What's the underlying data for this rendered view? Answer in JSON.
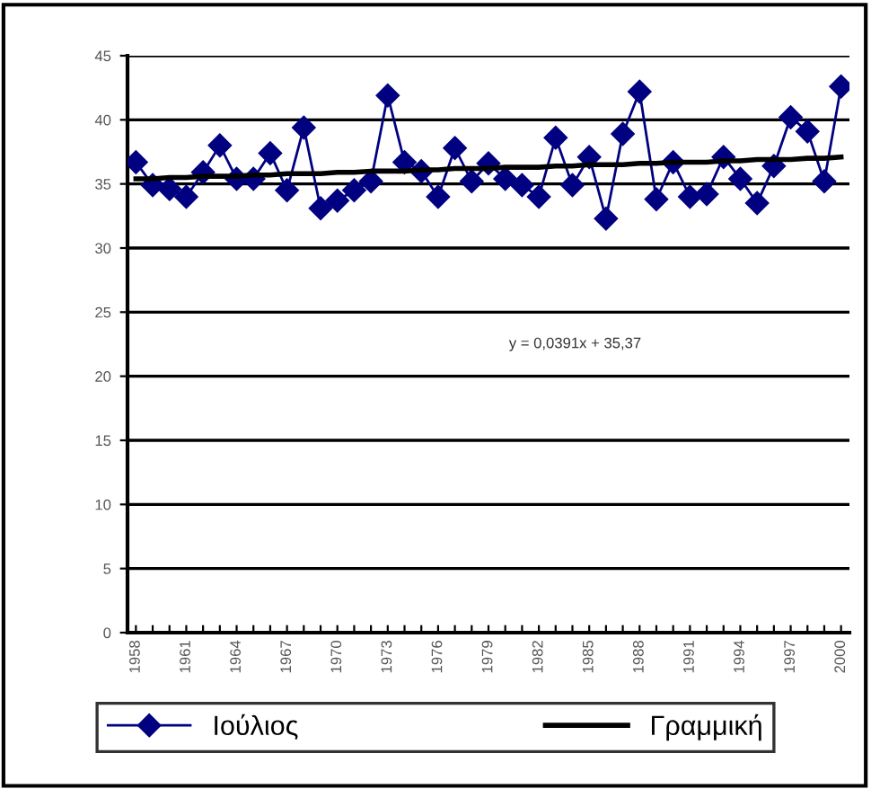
{
  "chart_data": {
    "type": "line",
    "categories": [
      "1958",
      null,
      null,
      "1961",
      null,
      null,
      "1964",
      null,
      null,
      "1967",
      null,
      null,
      "1970",
      null,
      null,
      "1973",
      null,
      null,
      "1976",
      null,
      null,
      "1979",
      null,
      null,
      "1982",
      null,
      null,
      "1985",
      null,
      null,
      "1988",
      null,
      null,
      "1991",
      null,
      null,
      "1994",
      null,
      null,
      "1997",
      null,
      null,
      "2000"
    ],
    "series": [
      {
        "name": "Ιούλιος",
        "color": "#000080",
        "marker": "diamond",
        "values": [
          36.7,
          34.9,
          34.6,
          34.0,
          35.9,
          38.0,
          35.4,
          35.4,
          37.4,
          34.5,
          39.4,
          33.1,
          33.7,
          34.5,
          35.2,
          41.9,
          36.7,
          36.0,
          34.0,
          37.8,
          35.2,
          36.6,
          35.4,
          34.9,
          34.0,
          38.6,
          34.9,
          37.1,
          32.3,
          38.9,
          42.2,
          33.8,
          36.7,
          34.0,
          34.2,
          37.1,
          35.4,
          33.5,
          36.4,
          40.2,
          39.1,
          35.2,
          42.6
        ]
      },
      {
        "name": "Γραμμική",
        "color": "#000000",
        "marker": "none",
        "values": [
          35.4,
          35.4,
          35.5,
          35.5,
          35.6,
          35.6,
          35.6,
          35.7,
          35.7,
          35.8,
          35.8,
          35.8,
          35.9,
          35.9,
          36.0,
          36.0,
          36.0,
          36.1,
          36.1,
          36.2,
          36.2,
          36.2,
          36.3,
          36.3,
          36.3,
          36.4,
          36.4,
          36.5,
          36.5,
          36.5,
          36.6,
          36.6,
          36.7,
          36.7,
          36.7,
          36.8,
          36.8,
          36.9,
          36.9,
          36.9,
          37.0,
          37.0,
          37.1
        ]
      }
    ],
    "ylim": [
      0,
      45
    ],
    "yticks": [
      0,
      5,
      10,
      15,
      20,
      25,
      30,
      35,
      40,
      45
    ],
    "grid": "y",
    "legend": "bottom",
    "annotations": [
      "y = 0,0391x + 35,37"
    ]
  }
}
